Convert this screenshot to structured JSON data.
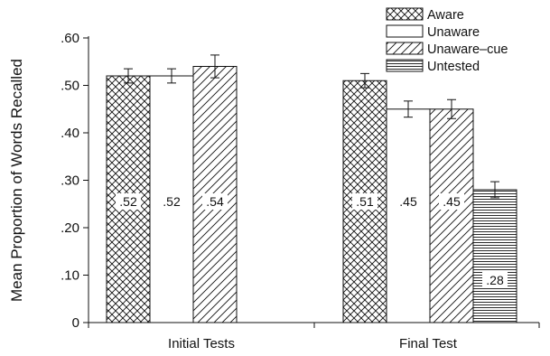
{
  "chart_data": {
    "type": "bar",
    "ylabel": "Mean Proportion of Words Recalled",
    "ylim": [
      0,
      0.6
    ],
    "yticks": [
      0,
      0.1,
      0.2,
      0.3,
      0.4,
      0.5,
      0.6
    ],
    "ytick_labels": [
      "0",
      ".10",
      ".20",
      ".30",
      ".40",
      ".50",
      ".60"
    ],
    "categories": [
      "Initial Tests",
      "Final Test"
    ],
    "legend_position": "top-right",
    "series": [
      {
        "name": "Aware",
        "pattern": "crosshatch",
        "values": [
          0.52,
          0.51
        ],
        "errors": [
          0.015,
          0.015
        ],
        "labels": [
          ".52",
          ".51"
        ]
      },
      {
        "name": "Unaware",
        "pattern": "none",
        "values": [
          0.52,
          0.45
        ],
        "errors": [
          0.015,
          0.017
        ],
        "labels": [
          ".52",
          ".45"
        ]
      },
      {
        "name": "Unaware–cue",
        "pattern": "diagonal",
        "values": [
          0.54,
          0.45
        ],
        "errors": [
          0.024,
          0.02
        ],
        "labels": [
          ".54",
          ".45"
        ]
      },
      {
        "name": "Untested",
        "pattern": "horizontal",
        "values": [
          null,
          0.28
        ],
        "errors": [
          null,
          0.017
        ],
        "labels": [
          null,
          ".28"
        ]
      }
    ],
    "colors": {
      "stroke": "#111111",
      "background": "#ffffff"
    }
  }
}
